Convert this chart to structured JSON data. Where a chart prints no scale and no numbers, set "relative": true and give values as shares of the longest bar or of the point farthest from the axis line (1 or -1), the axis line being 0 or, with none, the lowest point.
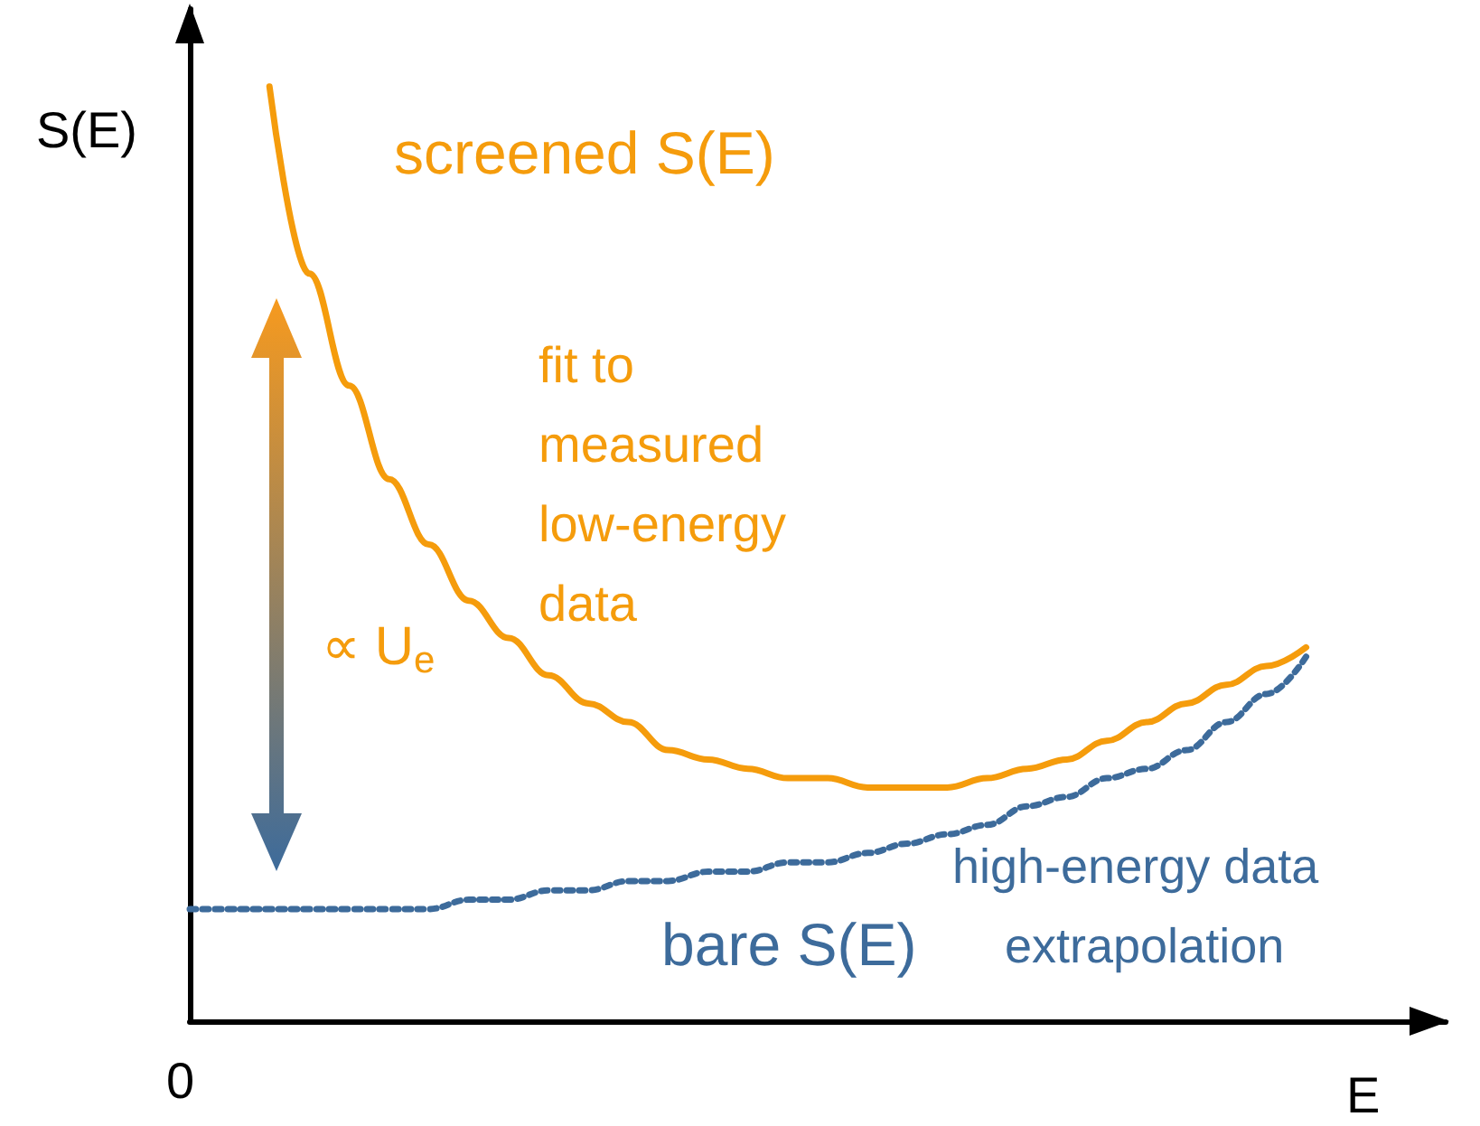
{
  "chart_data": {
    "type": "line",
    "relative": true,
    "xlabel": "E",
    "ylabel": "S(E)",
    "categories": [
      null,
      null,
      null,
      null,
      null,
      null,
      null,
      null,
      null,
      null,
      null,
      null,
      null,
      null,
      null,
      null,
      null,
      null,
      null,
      null,
      null,
      null,
      null,
      null,
      null,
      null,
      null,
      null,
      null
    ],
    "series": [
      {
        "name": "screened S(E)",
        "color": "#f59c0c",
        "line_style": "solid",
        "values": [
          null,
          null,
          1.0,
          0.8,
          0.68,
          0.58,
          0.51,
          0.45,
          0.41,
          0.37,
          0.34,
          0.32,
          0.29,
          0.28,
          0.27,
          0.26,
          0.26,
          0.25,
          0.25,
          0.25,
          0.26,
          0.27,
          0.28,
          0.3,
          0.32,
          0.34,
          0.36,
          0.38,
          0.4
        ]
      },
      {
        "name": "bare S(E)",
        "color": "#3d6b9b",
        "line_style": "dotted",
        "values": [
          0.12,
          0.12,
          0.12,
          0.12,
          0.12,
          0.12,
          0.12,
          0.13,
          0.13,
          0.14,
          0.14,
          0.15,
          0.15,
          0.16,
          0.16,
          0.17,
          0.17,
          0.18,
          0.19,
          0.2,
          0.21,
          0.23,
          0.24,
          0.26,
          0.27,
          0.29,
          0.32,
          0.35,
          0.39
        ]
      }
    ],
    "annotations": [
      "0",
      "fit to\nmeasured\nlow-energy\ndata",
      "∝ U$_{e}$",
      "high-energy data",
      "extrapolation"
    ],
    "marker": "none",
    "grid": false,
    "legend": false
  }
}
